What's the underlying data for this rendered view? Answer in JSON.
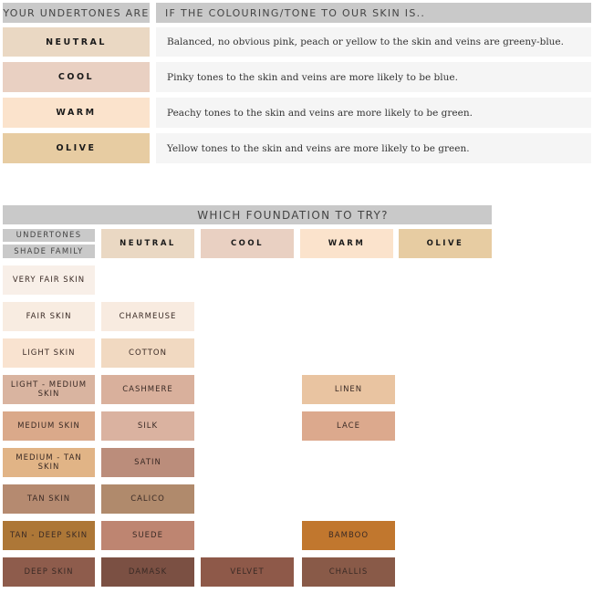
{
  "top_table": {
    "header_left": "YOUR UNDERTONES ARE",
    "header_right": "IF THE COLOURING/TONE TO OUR SKIN IS..",
    "rows": [
      {
        "label": "NEUTRAL",
        "color": "#ead8c3",
        "description": "Balanced, no obvious pink, peach or yellow to the skin and veins are greeny-blue."
      },
      {
        "label": "COOL",
        "color": "#e9d0c2",
        "description": "Pinky tones to the skin and veins are more likely to be blue."
      },
      {
        "label": "WARM",
        "color": "#fbe3cc",
        "description": "Peachy tones to the skin and veins are more likely to be green."
      },
      {
        "label": "OLIVE",
        "color": "#e7cca2",
        "description": "Yellow tones to the skin and veins are more likely to be green."
      }
    ]
  },
  "foundation_table": {
    "title": "WHICH FOUNDATION TO TRY?",
    "undertones_label": "UNDERTONES",
    "shade_family_label": "SHADE FAMILY",
    "columns": [
      {
        "label": "NEUTRAL",
        "color": "#ead8c3"
      },
      {
        "label": "COOL",
        "color": "#e9d0c2"
      },
      {
        "label": "WARM",
        "color": "#fbe3cc"
      },
      {
        "label": "OLIVE",
        "color": "#e7cca2"
      }
    ],
    "rows": [
      {
        "shade": "VERY FAIR SKIN",
        "color": "#f8efe8",
        "neutral": null,
        "cool": null,
        "warm": null
      },
      {
        "shade": "FAIR SKIN",
        "color": "#f8ece1",
        "neutral": {
          "name": "CHARMEUSE",
          "color": "#f8ebe0"
        },
        "cool": null,
        "warm": null
      },
      {
        "shade": "LIGHT SKIN",
        "color": "#f9e3d0",
        "neutral": {
          "name": "COTTON",
          "color": "#f1d9c1"
        },
        "cool": null,
        "warm": null
      },
      {
        "shade": "LIGHT - MEDIUM SKIN",
        "color": "#d9b4a0",
        "neutral": {
          "name": "CASHMERE",
          "color": "#d9b09c"
        },
        "cool": null,
        "warm": {
          "name": "LINEN",
          "color": "#e9c4a1"
        }
      },
      {
        "shade": "MEDIUM SKIN",
        "color": "#daa98a",
        "neutral": {
          "name": "SILK",
          "color": "#dab2a0"
        },
        "cool": null,
        "warm": {
          "name": "LACE",
          "color": "#dca98d"
        }
      },
      {
        "shade": "MEDIUM - TAN SKIN",
        "color": "#e1b486",
        "neutral": {
          "name": "SATIN",
          "color": "#bb8d7b"
        },
        "cool": null,
        "warm": null
      },
      {
        "shade": "TAN SKIN",
        "color": "#b58a70",
        "neutral": {
          "name": "CALICO",
          "color": "#b08a6c"
        },
        "cool": null,
        "warm": null
      },
      {
        "shade": "TAN - DEEP SKIN",
        "color": "#ad7737",
        "neutral": {
          "name": "SUEDE",
          "color": "#be8571"
        },
        "cool": null,
        "warm": {
          "name": "BAMBOO",
          "color": "#c1772e"
        }
      },
      {
        "shade": "DEEP SKIN",
        "color": "#8e5c4c",
        "neutral": {
          "name": "DAMASK",
          "color": "#7b5043"
        },
        "cool": {
          "name": "VELVET",
          "color": "#8e5949"
        },
        "warm": {
          "name": "CHALLIS",
          "color": "#895a48"
        }
      }
    ]
  }
}
